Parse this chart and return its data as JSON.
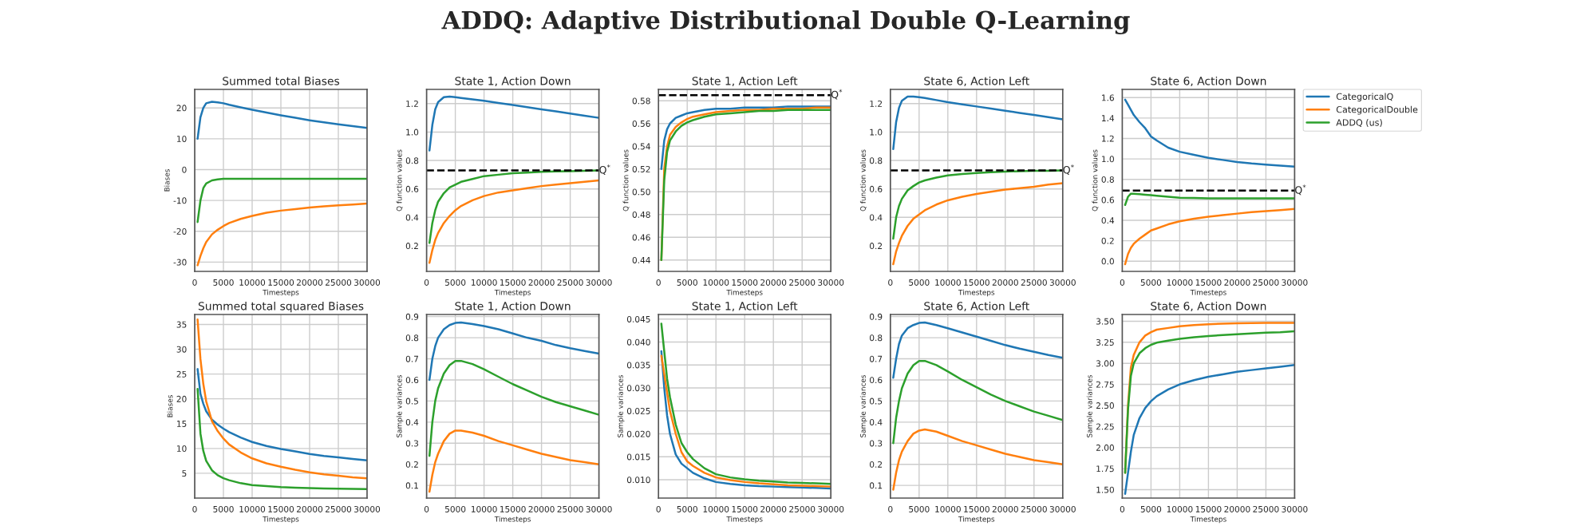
{
  "chart_data": [
    {
      "type": "line",
      "title": "Summed total Biases",
      "xlabel": "Timesteps",
      "ylabel": "Biases",
      "grid": true,
      "annotations": [
        "ADDQ: Adaptive Distributional Double Q-Learning"
      ],
      "x": [
        500,
        1000,
        1500,
        2000,
        3000,
        4000,
        5000,
        6000,
        8000,
        10000,
        12500,
        15000,
        17500,
        20000,
        22500,
        25000,
        27500,
        30000
      ],
      "xlim": [
        0,
        30000
      ],
      "xticks": [
        0,
        5000,
        10000,
        15000,
        20000,
        25000,
        30000
      ],
      "ylim": [
        -33,
        26
      ],
      "yticks": [
        -30,
        -20,
        -10,
        0,
        10,
        20
      ],
      "series": [
        {
          "color": "#1f77b4",
          "values": [
            10,
            17,
            20,
            21.5,
            22,
            21.8,
            21.5,
            21,
            20.2,
            19.4,
            18.5,
            17.6,
            16.8,
            16,
            15.3,
            14.7,
            14.1,
            13.5
          ]
        },
        {
          "color": "#ff7f0e",
          "values": [
            -31,
            -28,
            -25.5,
            -23.5,
            -21,
            -19.5,
            -18.3,
            -17.3,
            -16,
            -15,
            -14,
            -13.3,
            -12.8,
            -12.3,
            -11.9,
            -11.6,
            -11.3,
            -11
          ]
        },
        {
          "color": "#2ca02c",
          "values": [
            -17,
            -10,
            -6,
            -4.5,
            -3.5,
            -3.2,
            -3,
            -3,
            -3,
            -3,
            -3,
            -3,
            -3,
            -3,
            -3,
            -3,
            -3,
            -3
          ]
        }
      ]
    },
    {
      "type": "line",
      "title": "State 1, Action Down",
      "xlabel": "Timesteps",
      "ylabel": "Q function values",
      "grid": true,
      "x": [
        500,
        1000,
        1500,
        2000,
        3000,
        4000,
        5000,
        6000,
        8000,
        10000,
        12500,
        15000,
        17500,
        20000,
        22500,
        25000,
        27500,
        30000
      ],
      "xlim": [
        0,
        30000
      ],
      "xticks": [
        0,
        5000,
        10000,
        15000,
        20000,
        25000,
        30000
      ],
      "ylim": [
        0.02,
        1.3
      ],
      "yticks": [
        0.2,
        0.4,
        0.6,
        0.8,
        {
          "value": 1.0,
          "label": "1.0"
        },
        1.2
      ],
      "ref_lines": [
        {
          "axis": "y",
          "value": 0.73,
          "label": "Q$^{*}$",
          "color": "#000000",
          "line_style": "dashed"
        }
      ],
      "series": [
        {
          "color": "#1f77b4",
          "values": [
            0.87,
            1.05,
            1.16,
            1.21,
            1.245,
            1.25,
            1.245,
            1.24,
            1.23,
            1.22,
            1.205,
            1.19,
            1.175,
            1.16,
            1.145,
            1.13,
            1.115,
            1.1
          ]
        },
        {
          "color": "#ff7f0e",
          "values": [
            0.08,
            0.17,
            0.24,
            0.29,
            0.36,
            0.41,
            0.45,
            0.48,
            0.52,
            0.55,
            0.575,
            0.59,
            0.605,
            0.62,
            0.63,
            0.64,
            0.65,
            0.66
          ]
        },
        {
          "color": "#2ca02c",
          "values": [
            0.22,
            0.36,
            0.45,
            0.51,
            0.57,
            0.61,
            0.63,
            0.65,
            0.67,
            0.69,
            0.7,
            0.71,
            0.715,
            0.72,
            0.723,
            0.725,
            0.727,
            0.73
          ]
        }
      ]
    },
    {
      "type": "line",
      "title": "State 1, Action Left",
      "xlabel": "Timesteps",
      "ylabel": "Q function values",
      "grid": true,
      "x": [
        500,
        1000,
        1500,
        2000,
        3000,
        4000,
        5000,
        6000,
        8000,
        10000,
        12500,
        15000,
        17500,
        20000,
        22500,
        25000,
        27500,
        30000
      ],
      "xlim": [
        0,
        30000
      ],
      "xticks": [
        0,
        5000,
        10000,
        15000,
        20000,
        25000,
        30000
      ],
      "ylim": [
        0.43,
        0.59
      ],
      "yticks": [
        0.44,
        0.46,
        0.48,
        {
          "value": 0.5,
          "label": "0.50"
        },
        0.52,
        0.54,
        0.56,
        0.58
      ],
      "ref_lines": [
        {
          "axis": "y",
          "value": 0.585,
          "label": "Q$^{*}$",
          "color": "#000000",
          "line_style": "dashed"
        }
      ],
      "series": [
        {
          "color": "#1f77b4",
          "values": [
            0.52,
            0.545,
            0.555,
            0.56,
            0.565,
            0.567,
            0.569,
            0.57,
            0.572,
            0.573,
            0.573,
            0.574,
            0.574,
            0.574,
            0.575,
            0.575,
            0.575,
            0.575
          ]
        },
        {
          "color": "#ff7f0e",
          "values": [
            0.44,
            0.52,
            0.54,
            0.55,
            0.557,
            0.561,
            0.564,
            0.566,
            0.568,
            0.57,
            0.571,
            0.572,
            0.572,
            0.573,
            0.573,
            0.573,
            0.574,
            0.574
          ]
        },
        {
          "color": "#2ca02c",
          "values": [
            0.44,
            0.51,
            0.535,
            0.545,
            0.553,
            0.558,
            0.561,
            0.563,
            0.566,
            0.568,
            0.569,
            0.57,
            0.571,
            0.571,
            0.572,
            0.572,
            0.572,
            0.572
          ]
        }
      ]
    },
    {
      "type": "line",
      "title": "State 6, Action Left",
      "xlabel": "Timesteps",
      "ylabel": "Q function values",
      "grid": true,
      "x": [
        500,
        1000,
        1500,
        2000,
        3000,
        4000,
        5000,
        6000,
        8000,
        10000,
        12500,
        15000,
        17500,
        20000,
        22500,
        25000,
        27500,
        30000
      ],
      "xlim": [
        0,
        30000
      ],
      "xticks": [
        0,
        5000,
        10000,
        15000,
        20000,
        25000,
        30000
      ],
      "ylim": [
        0.02,
        1.3
      ],
      "yticks": [
        0.2,
        0.4,
        0.6,
        0.8,
        {
          "value": 1.0,
          "label": "1.0"
        },
        1.2
      ],
      "ref_lines": [
        {
          "axis": "y",
          "value": 0.73,
          "label": "Q$^{*}$",
          "color": "#000000",
          "line_style": "dashed"
        }
      ],
      "series": [
        {
          "color": "#1f77b4",
          "values": [
            0.88,
            1.07,
            1.17,
            1.22,
            1.25,
            1.25,
            1.245,
            1.24,
            1.225,
            1.21,
            1.195,
            1.18,
            1.165,
            1.15,
            1.135,
            1.12,
            1.105,
            1.09
          ]
        },
        {
          "color": "#ff7f0e",
          "values": [
            0.07,
            0.16,
            0.22,
            0.27,
            0.34,
            0.39,
            0.42,
            0.45,
            0.49,
            0.52,
            0.545,
            0.565,
            0.58,
            0.595,
            0.605,
            0.615,
            0.63,
            0.64
          ]
        },
        {
          "color": "#2ca02c",
          "values": [
            0.25,
            0.4,
            0.48,
            0.53,
            0.59,
            0.62,
            0.645,
            0.66,
            0.68,
            0.695,
            0.705,
            0.712,
            0.718,
            0.722,
            0.725,
            0.727,
            0.728,
            0.73
          ]
        }
      ]
    },
    {
      "type": "line",
      "title": "State 6, Action Down",
      "xlabel": "Timesteps",
      "ylabel": "Q function values",
      "grid": true,
      "legend": "top right",
      "x": [
        500,
        1000,
        1500,
        2000,
        3000,
        4000,
        5000,
        6000,
        8000,
        10000,
        12500,
        15000,
        17500,
        20000,
        22500,
        25000,
        27500,
        30000
      ],
      "xlim": [
        0,
        30000
      ],
      "xticks": [
        0,
        5000,
        10000,
        15000,
        20000,
        25000,
        30000
      ],
      "ylim": [
        -0.1,
        1.68
      ],
      "yticks": [
        {
          "value": 0.0,
          "label": "0.0"
        },
        0.2,
        0.4,
        0.6,
        0.8,
        {
          "value": 1.0,
          "label": "1.0"
        },
        1.2,
        1.4,
        1.6
      ],
      "ref_lines": [
        {
          "axis": "y",
          "value": 0.69,
          "label": "Q$^{*}$",
          "color": "#000000",
          "line_style": "dashed"
        }
      ],
      "series": [
        {
          "name": "CategoricalQ",
          "color": "#1f77b4",
          "values": [
            1.58,
            1.53,
            1.48,
            1.43,
            1.36,
            1.3,
            1.22,
            1.18,
            1.11,
            1.07,
            1.04,
            1.01,
            0.99,
            0.97,
            0.955,
            0.945,
            0.935,
            0.925
          ]
        },
        {
          "name": "CategoricalDouble",
          "color": "#ff7f0e",
          "values": [
            -0.03,
            0.07,
            0.13,
            0.17,
            0.22,
            0.26,
            0.3,
            0.32,
            0.36,
            0.39,
            0.415,
            0.435,
            0.45,
            0.465,
            0.48,
            0.49,
            0.5,
            0.51
          ]
        },
        {
          "name": "ADDQ (us)",
          "color": "#2ca02c",
          "values": [
            0.55,
            0.63,
            0.66,
            0.66,
            0.655,
            0.65,
            0.645,
            0.64,
            0.63,
            0.62,
            0.618,
            0.615,
            0.615,
            0.615,
            0.615,
            0.615,
            0.615,
            0.615
          ]
        }
      ]
    },
    {
      "type": "line",
      "title": "Summed total squared Biases",
      "xlabel": "Timesteps",
      "ylabel": "Biases",
      "grid": true,
      "x": [
        500,
        1000,
        1500,
        2000,
        3000,
        4000,
        5000,
        6000,
        8000,
        10000,
        12500,
        15000,
        17500,
        20000,
        22500,
        25000,
        27500,
        30000
      ],
      "xlim": [
        0,
        30000
      ],
      "xticks": [
        0,
        5000,
        10000,
        15000,
        20000,
        25000,
        30000
      ],
      "ylim": [
        0,
        37
      ],
      "yticks": [
        5,
        10,
        15,
        20,
        25,
        30,
        35
      ],
      "series": [
        {
          "color": "#1f77b4",
          "values": [
            26,
            21,
            19,
            17.5,
            15.8,
            14.8,
            14,
            13.3,
            12.2,
            11.3,
            10.5,
            9.9,
            9.4,
            8.9,
            8.5,
            8.2,
            7.9,
            7.6
          ]
        },
        {
          "color": "#ff7f0e",
          "values": [
            36,
            28,
            23,
            19.5,
            15.5,
            13.5,
            12,
            10.8,
            9.2,
            8,
            7,
            6.3,
            5.7,
            5.2,
            4.8,
            4.5,
            4.2,
            4
          ]
        },
        {
          "color": "#2ca02c",
          "values": [
            22,
            13,
            9.5,
            7.5,
            5.6,
            4.6,
            4,
            3.6,
            3,
            2.6,
            2.4,
            2.2,
            2.1,
            2,
            1.95,
            1.9,
            1.85,
            1.8
          ]
        }
      ]
    },
    {
      "type": "line",
      "title": "State 1, Action Down",
      "xlabel": "Timesteps",
      "ylabel": "Sample variances",
      "grid": true,
      "x": [
        500,
        1000,
        1500,
        2000,
        3000,
        4000,
        5000,
        6000,
        8000,
        10000,
        12500,
        15000,
        17500,
        20000,
        22500,
        25000,
        27500,
        30000
      ],
      "xlim": [
        0,
        30000
      ],
      "xticks": [
        0,
        5000,
        10000,
        15000,
        20000,
        25000,
        30000
      ],
      "ylim": [
        0.04,
        0.91
      ],
      "yticks": [
        0.1,
        0.2,
        0.3,
        0.4,
        0.5,
        0.6,
        0.7,
        0.8,
        0.9
      ],
      "series": [
        {
          "color": "#1f77b4",
          "values": [
            0.6,
            0.7,
            0.76,
            0.8,
            0.84,
            0.86,
            0.87,
            0.872,
            0.865,
            0.855,
            0.84,
            0.82,
            0.8,
            0.785,
            0.765,
            0.75,
            0.737,
            0.725
          ]
        },
        {
          "color": "#ff7f0e",
          "values": [
            0.07,
            0.15,
            0.21,
            0.25,
            0.31,
            0.345,
            0.36,
            0.36,
            0.35,
            0.335,
            0.31,
            0.29,
            0.27,
            0.25,
            0.235,
            0.22,
            0.21,
            0.2
          ]
        },
        {
          "color": "#2ca02c",
          "values": [
            0.24,
            0.4,
            0.5,
            0.56,
            0.63,
            0.67,
            0.69,
            0.69,
            0.675,
            0.65,
            0.615,
            0.58,
            0.55,
            0.52,
            0.495,
            0.475,
            0.455,
            0.435
          ]
        }
      ]
    },
    {
      "type": "line",
      "title": "State 1, Action Left",
      "xlabel": "Timesteps",
      "ylabel": "Sample variances",
      "grid": true,
      "x": [
        500,
        1000,
        1500,
        2000,
        3000,
        4000,
        5000,
        6000,
        8000,
        10000,
        12500,
        15000,
        17500,
        20000,
        22500,
        25000,
        27500,
        30000
      ],
      "xlim": [
        0,
        30000
      ],
      "xticks": [
        0,
        5000,
        10000,
        15000,
        20000,
        25000,
        30000
      ],
      "ylim": [
        0.006,
        0.046
      ],
      "yticks": [
        {
          "value": 0.01,
          "label": "0.010"
        },
        0.015,
        {
          "value": 0.02,
          "label": "0.020"
        },
        0.025,
        {
          "value": 0.03,
          "label": "0.030"
        },
        0.035,
        {
          "value": 0.04,
          "label": "0.040"
        },
        0.045
      ],
      "series": [
        {
          "color": "#1f77b4",
          "values": [
            0.038,
            0.03,
            0.024,
            0.02,
            0.0155,
            0.0135,
            0.0125,
            0.0115,
            0.0103,
            0.0095,
            0.0091,
            0.0088,
            0.0086,
            0.0085,
            0.0084,
            0.0083,
            0.0082,
            0.0081
          ]
        },
        {
          "color": "#ff7f0e",
          "values": [
            0.037,
            0.033,
            0.029,
            0.025,
            0.02,
            0.016,
            0.014,
            0.013,
            0.0115,
            0.0105,
            0.0099,
            0.0095,
            0.0092,
            0.009,
            0.0088,
            0.0087,
            0.0086,
            0.0085
          ]
        },
        {
          "color": "#2ca02c",
          "values": [
            0.044,
            0.038,
            0.032,
            0.028,
            0.022,
            0.018,
            0.016,
            0.0145,
            0.0125,
            0.0112,
            0.0105,
            0.0101,
            0.0098,
            0.0096,
            0.0094,
            0.0093,
            0.0092,
            0.0091
          ]
        }
      ]
    },
    {
      "type": "line",
      "title": "State 6, Action Left",
      "xlabel": "Timesteps",
      "ylabel": "Sample variances",
      "grid": true,
      "x": [
        500,
        1000,
        1500,
        2000,
        3000,
        4000,
        5000,
        6000,
        8000,
        10000,
        12500,
        15000,
        17500,
        20000,
        22500,
        25000,
        27500,
        30000
      ],
      "xlim": [
        0,
        30000
      ],
      "xticks": [
        0,
        5000,
        10000,
        15000,
        20000,
        25000,
        30000
      ],
      "ylim": [
        0.04,
        0.91
      ],
      "yticks": [
        0.1,
        0.2,
        0.3,
        0.4,
        0.5,
        0.6,
        0.7,
        0.8,
        0.9
      ],
      "series": [
        {
          "color": "#1f77b4",
          "values": [
            0.61,
            0.7,
            0.77,
            0.81,
            0.845,
            0.86,
            0.87,
            0.872,
            0.86,
            0.845,
            0.825,
            0.805,
            0.785,
            0.765,
            0.748,
            0.733,
            0.718,
            0.705
          ]
        },
        {
          "color": "#ff7f0e",
          "values": [
            0.08,
            0.16,
            0.22,
            0.26,
            0.31,
            0.345,
            0.36,
            0.365,
            0.355,
            0.335,
            0.31,
            0.29,
            0.27,
            0.25,
            0.235,
            0.22,
            0.21,
            0.2
          ]
        },
        {
          "color": "#2ca02c",
          "values": [
            0.3,
            0.42,
            0.5,
            0.56,
            0.63,
            0.67,
            0.69,
            0.69,
            0.67,
            0.64,
            0.6,
            0.565,
            0.53,
            0.5,
            0.475,
            0.45,
            0.43,
            0.41
          ]
        }
      ]
    },
    {
      "type": "line",
      "title": "State 6, Action Down",
      "xlabel": "Timesteps",
      "ylabel": "Sample variances",
      "grid": true,
      "x": [
        500,
        1000,
        1500,
        2000,
        3000,
        4000,
        5000,
        6000,
        8000,
        10000,
        12500,
        15000,
        17500,
        20000,
        22500,
        25000,
        27500,
        30000
      ],
      "xlim": [
        0,
        30000
      ],
      "xticks": [
        0,
        5000,
        10000,
        15000,
        20000,
        25000,
        30000
      ],
      "ylim": [
        1.4,
        3.58
      ],
      "yticks": [
        {
          "value": 1.5,
          "label": "1.50"
        },
        1.75,
        {
          "value": 2.0,
          "label": "2.00"
        },
        2.25,
        {
          "value": 2.5,
          "label": "2.50"
        },
        2.75,
        {
          "value": 3.0,
          "label": "3.00"
        },
        3.25,
        {
          "value": 3.5,
          "label": "3.50"
        }
      ],
      "series": [
        {
          "color": "#1f77b4",
          "values": [
            1.45,
            1.7,
            1.95,
            2.15,
            2.35,
            2.47,
            2.55,
            2.61,
            2.69,
            2.75,
            2.8,
            2.84,
            2.87,
            2.9,
            2.92,
            2.94,
            2.96,
            2.98
          ]
        },
        {
          "color": "#ff7f0e",
          "values": [
            1.7,
            2.5,
            2.95,
            3.1,
            3.25,
            3.33,
            3.37,
            3.4,
            3.42,
            3.44,
            3.455,
            3.465,
            3.47,
            3.475,
            3.478,
            3.48,
            3.48,
            3.48
          ]
        },
        {
          "color": "#2ca02c",
          "values": [
            1.7,
            2.45,
            2.85,
            3.0,
            3.12,
            3.18,
            3.22,
            3.245,
            3.27,
            3.29,
            3.31,
            3.325,
            3.335,
            3.345,
            3.355,
            3.365,
            3.37,
            3.38
          ]
        }
      ]
    }
  ]
}
